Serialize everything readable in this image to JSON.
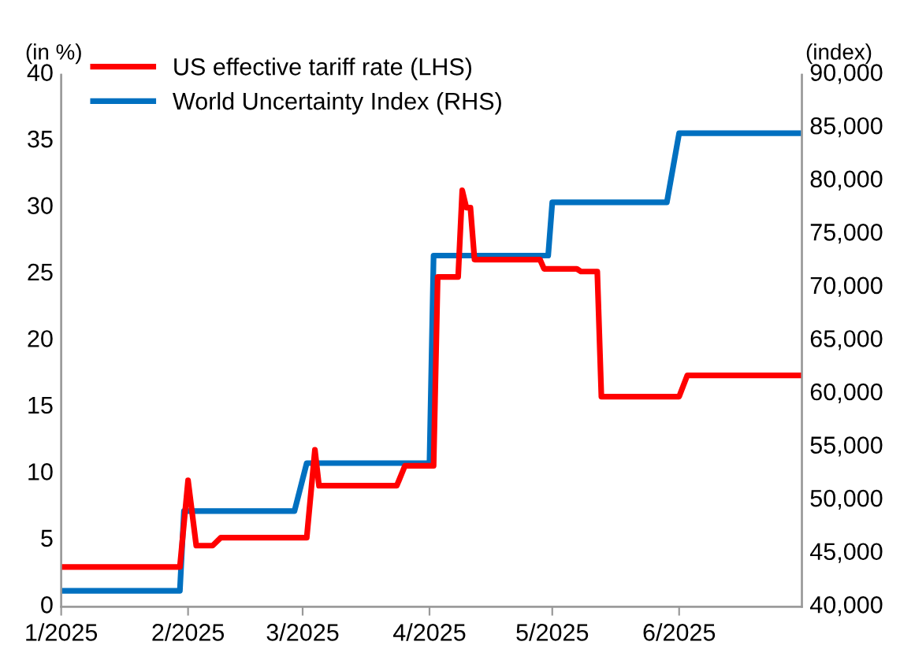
{
  "chart_data": {
    "type": "line",
    "ylabel": "(in %)",
    "y2label": "(index)",
    "xlim": [
      "2025-01-01",
      "2025-07-01"
    ],
    "xticks": [
      {
        "value": "2025-01-01",
        "label": "1/2025"
      },
      {
        "value": "2025-02-01",
        "label": "2/2025"
      },
      {
        "value": "2025-03-01",
        "label": "3/2025"
      },
      {
        "value": "2025-04-01",
        "label": "4/2025"
      },
      {
        "value": "2025-05-01",
        "label": "5/2025"
      },
      {
        "value": "2025-06-01",
        "label": "6/2025"
      }
    ],
    "ylim": [
      0,
      40
    ],
    "yticks": [
      0,
      5,
      10,
      15,
      20,
      25,
      30,
      35,
      40
    ],
    "y2lim": [
      40000,
      90000
    ],
    "y2ticks": [
      {
        "value": 40000,
        "label": "40,000"
      },
      {
        "value": 45000,
        "label": "45,000"
      },
      {
        "value": 50000,
        "label": "50,000"
      },
      {
        "value": 55000,
        "label": "55,000"
      },
      {
        "value": 60000,
        "label": "60,000"
      },
      {
        "value": 65000,
        "label": "65,000"
      },
      {
        "value": 70000,
        "label": "70,000"
      },
      {
        "value": 75000,
        "label": "75,000"
      },
      {
        "value": 80000,
        "label": "80,000"
      },
      {
        "value": 85000,
        "label": "85,000"
      },
      {
        "value": 90000,
        "label": "90,000"
      }
    ],
    "grid": false,
    "legend": "top left",
    "line_style": "solid",
    "marker": "none",
    "series": [
      {
        "name": "US effective tariff rate (LHS)",
        "color": "#ff0000",
        "x": [
          "2025-01-01",
          "2025-01-30",
          "2025-02-01",
          "2025-02-03",
          "2025-02-07",
          "2025-02-09",
          "2025-03-02",
          "2025-03-04",
          "2025-03-05",
          "2025-03-24",
          "2025-03-26",
          "2025-04-02",
          "2025-04-03",
          "2025-04-08",
          "2025-04-09",
          "2025-04-10",
          "2025-04-11",
          "2025-04-12",
          "2025-04-28",
          "2025-04-29",
          "2025-05-07",
          "2025-05-08",
          "2025-05-12",
          "2025-05-13",
          "2025-06-01",
          "2025-06-03",
          "2025-07-01"
        ],
        "values": [
          3,
          3,
          9.5,
          4.6,
          4.6,
          5.2,
          5.2,
          11.8,
          9.1,
          9.1,
          10.6,
          10.6,
          24.8,
          24.8,
          31.3,
          30,
          30,
          26.1,
          26.1,
          25.4,
          25.4,
          25.2,
          25.2,
          15.8,
          15.8,
          17.4,
          17.4
        ]
      },
      {
        "name": "World Uncertainty Index (RHS)",
        "color": "#0070c0",
        "axis": "y2",
        "x": [
          "2025-01-01",
          "2025-01-30",
          "2025-01-31",
          "2025-02-27",
          "2025-03-02",
          "2025-04-01",
          "2025-04-02",
          "2025-04-30",
          "2025-05-01",
          "2025-05-29",
          "2025-06-01",
          "2025-07-01"
        ],
        "values": [
          41500,
          41500,
          49000,
          49000,
          53500,
          53500,
          73000,
          73000,
          78000,
          78000,
          84500,
          84500
        ]
      }
    ]
  }
}
